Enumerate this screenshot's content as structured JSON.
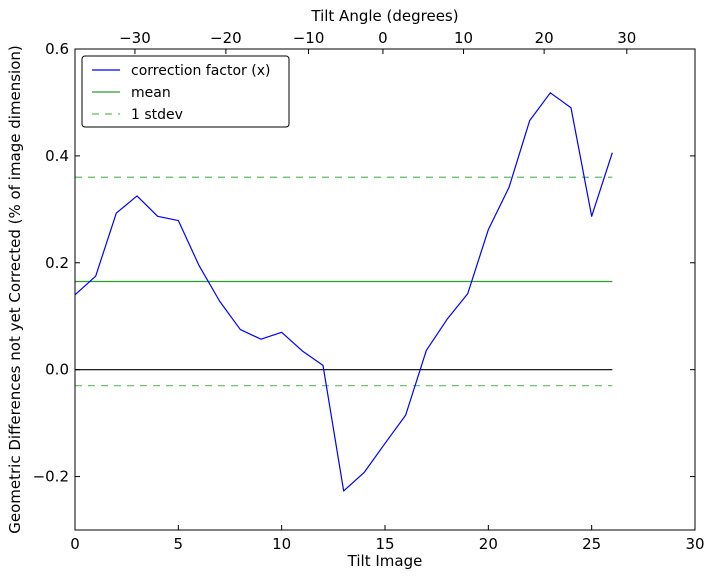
{
  "chart_data": {
    "type": "line",
    "xlabel": "Tilt Image",
    "ylabel": "Geometric Differences not yet Corrected (% of image dimension)",
    "top_xlabel": "Tilt Angle (degrees)",
    "xlim": [
      0,
      30
    ],
    "ylim": [
      -0.3,
      0.6
    ],
    "x_ticks": [
      0,
      5,
      10,
      15,
      20,
      25,
      30
    ],
    "y_ticks": [
      -0.2,
      0.0,
      0.2,
      0.4,
      0.6
    ],
    "y_tick_labels": [
      "−0.2",
      "0.0",
      "0.2",
      "0.4",
      "0.6"
    ],
    "top_ticks": [
      {
        "x": 2.9,
        "label": "−30"
      },
      {
        "x": 7.3,
        "label": "−20"
      },
      {
        "x": 11.3,
        "label": "−10"
      },
      {
        "x": 14.9,
        "label": "0"
      },
      {
        "x": 18.8,
        "label": "10"
      },
      {
        "x": 22.7,
        "label": "20"
      },
      {
        "x": 26.7,
        "label": "30"
      }
    ],
    "grid": false,
    "legend_position": "top-left",
    "series": [
      {
        "name": "correction factor (x)",
        "color": "#0000ff",
        "style": "solid",
        "x": [
          0,
          1,
          2,
          3,
          4,
          5,
          6,
          7,
          8,
          9,
          10,
          11,
          12,
          13,
          14,
          15,
          16,
          17,
          18,
          19,
          20,
          21,
          22,
          23,
          24,
          25,
          26
        ],
        "y": [
          0.14,
          0.175,
          0.293,
          0.325,
          0.287,
          0.279,
          0.195,
          0.128,
          0.075,
          0.057,
          0.07,
          0.035,
          0.008,
          -0.227,
          -0.192,
          -0.138,
          -0.085,
          0.036,
          0.094,
          0.142,
          0.262,
          0.341,
          0.466,
          0.518,
          0.49,
          0.287,
          0.406
        ]
      },
      {
        "name": "mean",
        "color": "#2ca02c",
        "style": "solid",
        "x": [
          0,
          26
        ],
        "y": [
          0.165,
          0.165
        ]
      },
      {
        "name": "1 stdev",
        "color": "#5fbf5f",
        "style": "dashed",
        "x": [
          0,
          26
        ],
        "y": [
          0.36,
          0.36
        ]
      },
      {
        "color": "#5fbf5f",
        "style": "dashed",
        "x": [
          0,
          26
        ],
        "y": [
          -0.03,
          -0.03
        ]
      },
      {
        "color": "#000000",
        "style": "solid",
        "x": [
          0,
          26
        ],
        "y": [
          0.0,
          0.0
        ]
      }
    ]
  }
}
